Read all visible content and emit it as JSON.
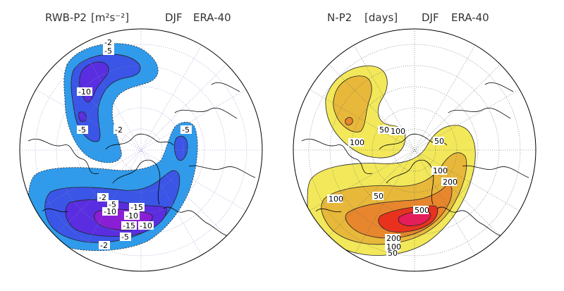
{
  "panels": [
    {
      "id": "rwb",
      "title_var": "RWB-P2",
      "title_unit": "[m²s⁻²]",
      "title_season": "DJF",
      "title_dataset": "ERA-40",
      "contour_labels": [
        "-2",
        "-5",
        "-10",
        "-5",
        "-2",
        "-5",
        "-2",
        "-5",
        "-10",
        "-15",
        "-10",
        "-15",
        "-10",
        "-5",
        "-2"
      ],
      "colors": {
        "level1": "#2f9bea",
        "level2": "#3b55e6",
        "level3": "#5a2ee0",
        "level4": "#8a1ed4"
      }
    },
    {
      "id": "np2",
      "title_var": "N-P2",
      "title_unit": "[days]",
      "title_season": "DJF",
      "title_dataset": "ERA-40",
      "contour_labels": [
        "100",
        "50",
        "100",
        "50",
        "100",
        "200",
        "50",
        "100",
        "500",
        "200",
        "100",
        "50"
      ],
      "colors": {
        "level1": "#f2e85a",
        "level2": "#e8b83a",
        "level3": "#e7862d",
        "level4": "#e8321e",
        "level5": "#e51d5a"
      }
    }
  ]
}
